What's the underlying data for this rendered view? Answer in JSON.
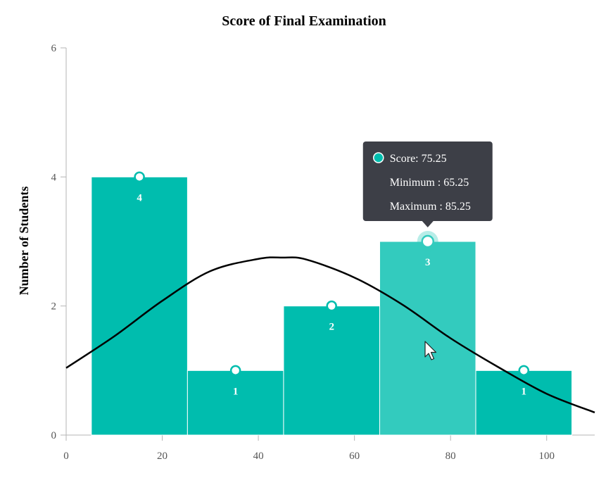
{
  "chart_data": {
    "type": "bar",
    "title": "Score of Final Examination",
    "ylabel": "Number of Students",
    "xlabel": "",
    "xlim": [
      0,
      110
    ],
    "ylim": [
      0,
      6
    ],
    "xticks": [
      0,
      20,
      40,
      60,
      80,
      100
    ],
    "yticks": [
      0,
      2,
      4,
      6
    ],
    "grid": false,
    "bins": [
      {
        "min": 5.25,
        "max": 25.25,
        "center": 15.25,
        "value": 4,
        "label": "4"
      },
      {
        "min": 25.25,
        "max": 45.25,
        "center": 35.25,
        "value": 1,
        "label": "1"
      },
      {
        "min": 45.25,
        "max": 65.25,
        "center": 55.25,
        "value": 2,
        "label": "2"
      },
      {
        "min": 65.25,
        "max": 85.25,
        "center": 75.25,
        "value": 3,
        "label": "3"
      },
      {
        "min": 85.25,
        "max": 105.25,
        "center": 95.25,
        "value": 1,
        "label": "1"
      }
    ],
    "distribution_curve": {
      "type": "normal",
      "x": [
        0,
        10,
        20,
        30,
        40,
        45,
        50,
        60,
        70,
        80,
        90,
        100,
        110
      ],
      "y": [
        1.04,
        1.53,
        2.08,
        2.54,
        2.73,
        2.75,
        2.72,
        2.44,
        2.02,
        1.5,
        1.05,
        0.64,
        0.35
      ]
    },
    "highlighted_bin": 3,
    "colors": {
      "bar": "#00bdae",
      "bar_hover": "#33cbbe",
      "curve": "#000000",
      "tooltip_bg": "#3d3f47"
    },
    "tooltip": {
      "line1": "Score: 75.25",
      "line2": "Minimum : 65.25",
      "line3": "Maximum : 85.25"
    }
  }
}
